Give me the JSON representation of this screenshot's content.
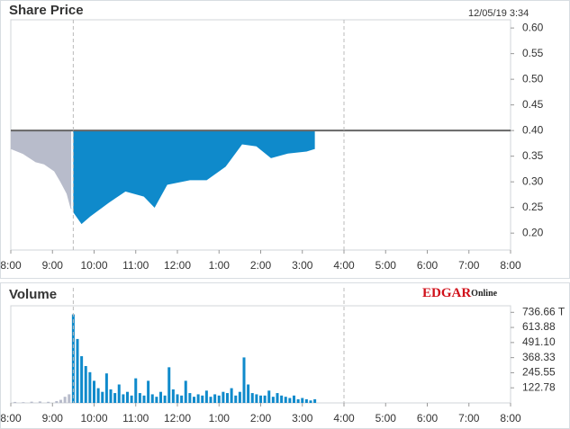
{
  "chart_data": [
    {
      "type": "area",
      "title": "Share Price",
      "timestamp": "12/05/19 3:34",
      "xlim": [
        8,
        20
      ],
      "xticks": [
        {
          "value": 8,
          "label": "8:00"
        },
        {
          "value": 9,
          "label": "9:00"
        },
        {
          "value": 10,
          "label": "10:00"
        },
        {
          "value": 11,
          "label": "11:00"
        },
        {
          "value": 12,
          "label": "12:00"
        },
        {
          "value": 13,
          "label": "1:00"
        },
        {
          "value": 14,
          "label": "2:00"
        },
        {
          "value": 15,
          "label": "3:00"
        },
        {
          "value": 16,
          "label": "4:00"
        },
        {
          "value": 17,
          "label": "5:00"
        },
        {
          "value": 18,
          "label": "6:00"
        },
        {
          "value": 19,
          "label": "7:00"
        },
        {
          "value": 20,
          "label": "8:00"
        }
      ],
      "ylim": [
        0.167,
        0.616
      ],
      "yticks": [
        {
          "value": 0.2,
          "label": "0.20"
        },
        {
          "value": 0.25,
          "label": "0.25"
        },
        {
          "value": 0.3,
          "label": "0.30"
        },
        {
          "value": 0.35,
          "label": "0.35"
        },
        {
          "value": 0.4,
          "label": "0.40"
        },
        {
          "value": 0.45,
          "label": "0.45"
        },
        {
          "value": 0.5,
          "label": "0.50"
        },
        {
          "value": 0.55,
          "label": "0.55"
        },
        {
          "value": 0.6,
          "label": "0.60"
        }
      ],
      "reference_line": 0.4,
      "reference_color": "#666666",
      "vlines": [
        9.5,
        16
      ],
      "series": [
        {
          "color": "#b8bccb",
          "x": [
            8.0,
            8.3,
            8.6,
            8.8,
            9.05,
            9.2,
            9.35,
            9.45
          ],
          "values": [
            0.365,
            0.355,
            0.339,
            0.335,
            0.321,
            0.3,
            0.277,
            0.247
          ]
        },
        {
          "color": "#0f8acb",
          "x": [
            9.5,
            9.7,
            9.9,
            10.35,
            10.75,
            11.2,
            11.45,
            11.75,
            12.3,
            12.7,
            13.15,
            13.55,
            13.9,
            14.25,
            14.65,
            15.1,
            15.3
          ],
          "values": [
            0.242,
            0.219,
            0.233,
            0.26,
            0.282,
            0.272,
            0.251,
            0.295,
            0.304,
            0.304,
            0.33,
            0.374,
            0.37,
            0.347,
            0.356,
            0.36,
            0.365
          ]
        }
      ]
    },
    {
      "type": "bar",
      "title": "Volume",
      "logo": "EDGAR",
      "logo_suffix": "Online",
      "xlim": [
        8,
        20
      ],
      "xticks": [
        {
          "value": 8,
          "label": "8:00"
        },
        {
          "value": 9,
          "label": "9:00"
        },
        {
          "value": 10,
          "label": "10:00"
        },
        {
          "value": 11,
          "label": "11:00"
        },
        {
          "value": 12,
          "label": "12:00"
        },
        {
          "value": 13,
          "label": "1:00"
        },
        {
          "value": 14,
          "label": "2:00"
        },
        {
          "value": 15,
          "label": "3:00"
        },
        {
          "value": 16,
          "label": "4:00"
        },
        {
          "value": 17,
          "label": "5:00"
        },
        {
          "value": 18,
          "label": "6:00"
        },
        {
          "value": 19,
          "label": "7:00"
        },
        {
          "value": 20,
          "label": "8:00"
        }
      ],
      "ylim": [
        0,
        790
      ],
      "yticks": [
        122.78,
        245.55,
        368.33,
        {
          "value": 491.1,
          "label": "491.10"
        },
        613.88,
        {
          "value": 736.66,
          "label": "736.66 T"
        }
      ],
      "vlines": [
        9.5,
        16
      ],
      "series": [
        {
          "color": "#b8bccb",
          "x": [
            8.1,
            8.3,
            8.5,
            8.7,
            8.9,
            9.1,
            9.2,
            9.3,
            9.4
          ],
          "values": [
            8,
            6,
            10,
            12,
            9,
            15,
            25,
            50,
            70
          ]
        },
        {
          "color": "#0f8acb",
          "x": [
            9.5,
            9.6,
            9.7,
            9.8,
            9.9,
            10.0,
            10.1,
            10.2,
            10.3,
            10.4,
            10.5,
            10.6,
            10.7,
            10.8,
            10.9,
            11.0,
            11.1,
            11.2,
            11.3,
            11.4,
            11.5,
            11.6,
            11.7,
            11.8,
            11.9,
            12.0,
            12.1,
            12.2,
            12.3,
            12.4,
            12.5,
            12.6,
            12.7,
            12.8,
            12.9,
            13.0,
            13.1,
            13.2,
            13.3,
            13.4,
            13.5,
            13.6,
            13.7,
            13.8,
            13.9,
            14.0,
            14.1,
            14.2,
            14.3,
            14.4,
            14.5,
            14.6,
            14.7,
            14.8,
            14.9,
            15.0,
            15.1,
            15.2,
            15.3
          ],
          "values": [
            720,
            520,
            380,
            300,
            250,
            180,
            120,
            90,
            240,
            110,
            80,
            150,
            70,
            90,
            60,
            200,
            80,
            60,
            180,
            70,
            50,
            90,
            60,
            290,
            110,
            70,
            60,
            180,
            80,
            50,
            70,
            60,
            100,
            50,
            70,
            60,
            90,
            80,
            120,
            60,
            90,
            370,
            150,
            80,
            70,
            60,
            60,
            100,
            50,
            80,
            60,
            50,
            40,
            60,
            30,
            40,
            30,
            20,
            30
          ]
        }
      ]
    }
  ]
}
